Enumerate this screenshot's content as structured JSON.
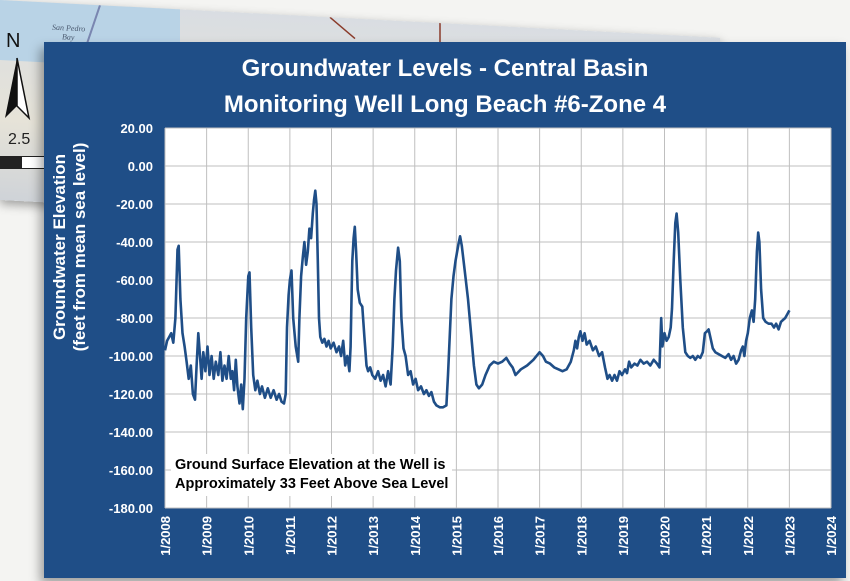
{
  "background_map": {
    "labels": [
      "San Pedro",
      "Bay"
    ],
    "north_label": "N",
    "scale_value": "2.5"
  },
  "colors": {
    "panel": "#1f4e87",
    "line": "#1f4e87",
    "plot_bg": "#ffffff",
    "grid": "#bfbfbf"
  },
  "chart_data": {
    "type": "line",
    "title": "Groundwater Levels - Central Basin",
    "subtitle": "Monitoring Well Long Beach #6-Zone 4",
    "ylabel_line1": "Groundwater Elevation",
    "ylabel_line2": "(feet from mean sea level)",
    "ylim": [
      -180,
      20
    ],
    "yticks": [
      "20.00",
      "0.00",
      "-20.00",
      "-40.00",
      "-60.00",
      "-80.00",
      "-100.00",
      "-120.00",
      "-140.00",
      "-160.00",
      "-180.00"
    ],
    "xlim": [
      2008,
      2024
    ],
    "xticks": [
      "1/2008",
      "1/2009",
      "1/2010",
      "1/2011",
      "1/2012",
      "1/2013",
      "1/2014",
      "1/2015",
      "1/2016",
      "1/2017",
      "1/2018",
      "1/2019",
      "1/2020",
      "1/2021",
      "1/2022",
      "1/2023",
      "1/2024"
    ],
    "grid": true,
    "annotation_line1": "Ground Surface Elevation at the Well is",
    "annotation_line2": "Approximately 33 Feet  Above Sea Level",
    "series": [
      {
        "points": [
          [
            2008.0,
            -97
          ],
          [
            2008.05,
            -92
          ],
          [
            2008.1,
            -90
          ],
          [
            2008.15,
            -88
          ],
          [
            2008.2,
            -93
          ],
          [
            2008.25,
            -80
          ],
          [
            2008.3,
            -44
          ],
          [
            2008.33,
            -42
          ],
          [
            2008.37,
            -70
          ],
          [
            2008.42,
            -88
          ],
          [
            2008.47,
            -95
          ],
          [
            2008.52,
            -103
          ],
          [
            2008.57,
            -112
          ],
          [
            2008.62,
            -105
          ],
          [
            2008.67,
            -120
          ],
          [
            2008.72,
            -123
          ],
          [
            2008.76,
            -105
          ],
          [
            2008.8,
            -88
          ],
          [
            2008.84,
            -100
          ],
          [
            2008.88,
            -112
          ],
          [
            2008.92,
            -98
          ],
          [
            2008.97,
            -108
          ],
          [
            2009.02,
            -95
          ],
          [
            2009.07,
            -110
          ],
          [
            2009.12,
            -100
          ],
          [
            2009.17,
            -112
          ],
          [
            2009.22,
            -103
          ],
          [
            2009.28,
            -110
          ],
          [
            2009.33,
            -98
          ],
          [
            2009.38,
            -113
          ],
          [
            2009.43,
            -105
          ],
          [
            2009.48,
            -112
          ],
          [
            2009.53,
            -100
          ],
          [
            2009.58,
            -112
          ],
          [
            2009.62,
            -108
          ],
          [
            2009.66,
            -118
          ],
          [
            2009.7,
            -102
          ],
          [
            2009.74,
            -116
          ],
          [
            2009.79,
            -125
          ],
          [
            2009.83,
            -115
          ],
          [
            2009.87,
            -128
          ],
          [
            2009.91,
            -112
          ],
          [
            2009.95,
            -80
          ],
          [
            2010.0,
            -58
          ],
          [
            2010.03,
            -56
          ],
          [
            2010.07,
            -85
          ],
          [
            2010.12,
            -110
          ],
          [
            2010.17,
            -118
          ],
          [
            2010.22,
            -113
          ],
          [
            2010.28,
            -120
          ],
          [
            2010.33,
            -116
          ],
          [
            2010.4,
            -122
          ],
          [
            2010.47,
            -117
          ],
          [
            2010.54,
            -122
          ],
          [
            2010.61,
            -118
          ],
          [
            2010.68,
            -123
          ],
          [
            2010.74,
            -120
          ],
          [
            2010.8,
            -124
          ],
          [
            2010.86,
            -125
          ],
          [
            2010.9,
            -120
          ],
          [
            2010.93,
            -85
          ],
          [
            2010.97,
            -68
          ],
          [
            2011.0,
            -60
          ],
          [
            2011.04,
            -55
          ],
          [
            2011.08,
            -80
          ],
          [
            2011.14,
            -95
          ],
          [
            2011.2,
            -103
          ],
          [
            2011.23,
            -80
          ],
          [
            2011.27,
            -58
          ],
          [
            2011.31,
            -48
          ],
          [
            2011.35,
            -40
          ],
          [
            2011.39,
            -52
          ],
          [
            2011.43,
            -45
          ],
          [
            2011.47,
            -33
          ],
          [
            2011.51,
            -38
          ],
          [
            2011.55,
            -25
          ],
          [
            2011.58,
            -18
          ],
          [
            2011.61,
            -13
          ],
          [
            2011.64,
            -20
          ],
          [
            2011.67,
            -50
          ],
          [
            2011.7,
            -80
          ],
          [
            2011.73,
            -90
          ],
          [
            2011.78,
            -93
          ],
          [
            2011.83,
            -91
          ],
          [
            2011.88,
            -95
          ],
          [
            2011.93,
            -92
          ],
          [
            2011.98,
            -96
          ],
          [
            2012.05,
            -93
          ],
          [
            2012.12,
            -98
          ],
          [
            2012.18,
            -95
          ],
          [
            2012.23,
            -100
          ],
          [
            2012.28,
            -92
          ],
          [
            2012.33,
            -105
          ],
          [
            2012.38,
            -100
          ],
          [
            2012.43,
            -108
          ],
          [
            2012.46,
            -95
          ],
          [
            2012.48,
            -70
          ],
          [
            2012.5,
            -50
          ],
          [
            2012.53,
            -38
          ],
          [
            2012.56,
            -32
          ],
          [
            2012.59,
            -45
          ],
          [
            2012.63,
            -65
          ],
          [
            2012.68,
            -72
          ],
          [
            2012.74,
            -74
          ],
          [
            2012.79,
            -90
          ],
          [
            2012.84,
            -105
          ],
          [
            2012.88,
            -108
          ],
          [
            2012.93,
            -106
          ],
          [
            2012.98,
            -110
          ],
          [
            2013.05,
            -112
          ],
          [
            2013.12,
            -108
          ],
          [
            2013.18,
            -113
          ],
          [
            2013.24,
            -110
          ],
          [
            2013.3,
            -116
          ],
          [
            2013.36,
            -108
          ],
          [
            2013.42,
            -115
          ],
          [
            2013.47,
            -95
          ],
          [
            2013.51,
            -70
          ],
          [
            2013.55,
            -55
          ],
          [
            2013.6,
            -43
          ],
          [
            2013.64,
            -50
          ],
          [
            2013.68,
            -80
          ],
          [
            2013.73,
            -96
          ],
          [
            2013.78,
            -100
          ],
          [
            2013.84,
            -110
          ],
          [
            2013.9,
            -108
          ],
          [
            2013.96,
            -115
          ],
          [
            2014.02,
            -112
          ],
          [
            2014.08,
            -118
          ],
          [
            2014.15,
            -116
          ],
          [
            2014.22,
            -120
          ],
          [
            2014.28,
            -118
          ],
          [
            2014.34,
            -121
          ],
          [
            2014.4,
            -119
          ],
          [
            2014.46,
            -124
          ],
          [
            2014.52,
            -126
          ],
          [
            2014.6,
            -127
          ],
          [
            2014.68,
            -127
          ],
          [
            2014.76,
            -126
          ],
          [
            2014.8,
            -110
          ],
          [
            2014.84,
            -90
          ],
          [
            2014.88,
            -70
          ],
          [
            2014.93,
            -58
          ],
          [
            2014.98,
            -50
          ],
          [
            2015.05,
            -41
          ],
          [
            2015.09,
            -37
          ],
          [
            2015.13,
            -42
          ],
          [
            2015.2,
            -55
          ],
          [
            2015.28,
            -70
          ],
          [
            2015.36,
            -90
          ],
          [
            2015.42,
            -105
          ],
          [
            2015.48,
            -115
          ],
          [
            2015.54,
            -117
          ],
          [
            2015.62,
            -115
          ],
          [
            2015.7,
            -110
          ],
          [
            2015.8,
            -105
          ],
          [
            2015.9,
            -103
          ],
          [
            2016.0,
            -104
          ],
          [
            2016.1,
            -103
          ],
          [
            2016.2,
            -101
          ],
          [
            2016.28,
            -104
          ],
          [
            2016.35,
            -106
          ],
          [
            2016.42,
            -110
          ],
          [
            2016.55,
            -107
          ],
          [
            2016.7,
            -105
          ],
          [
            2016.85,
            -102
          ],
          [
            2017.0,
            -98
          ],
          [
            2017.08,
            -100
          ],
          [
            2017.15,
            -103
          ],
          [
            2017.25,
            -104
          ],
          [
            2017.35,
            -106
          ],
          [
            2017.45,
            -107
          ],
          [
            2017.55,
            -108
          ],
          [
            2017.65,
            -107
          ],
          [
            2017.75,
            -103
          ],
          [
            2017.82,
            -97
          ],
          [
            2017.86,
            -92
          ],
          [
            2017.9,
            -96
          ],
          [
            2017.94,
            -90
          ],
          [
            2017.98,
            -87
          ],
          [
            2018.03,
            -92
          ],
          [
            2018.08,
            -88
          ],
          [
            2018.13,
            -94
          ],
          [
            2018.2,
            -92
          ],
          [
            2018.28,
            -97
          ],
          [
            2018.35,
            -95
          ],
          [
            2018.43,
            -100
          ],
          [
            2018.5,
            -98
          ],
          [
            2018.57,
            -106
          ],
          [
            2018.63,
            -112
          ],
          [
            2018.68,
            -110
          ],
          [
            2018.74,
            -113
          ],
          [
            2018.8,
            -110
          ],
          [
            2018.86,
            -113
          ],
          [
            2018.92,
            -108
          ],
          [
            2018.98,
            -110
          ],
          [
            2019.05,
            -107
          ],
          [
            2019.1,
            -109
          ],
          [
            2019.15,
            -103
          ],
          [
            2019.2,
            -106
          ],
          [
            2019.28,
            -104
          ],
          [
            2019.35,
            -105
          ],
          [
            2019.42,
            -102
          ],
          [
            2019.5,
            -104
          ],
          [
            2019.58,
            -103
          ],
          [
            2019.66,
            -105
          ],
          [
            2019.74,
            -102
          ],
          [
            2019.82,
            -104
          ],
          [
            2019.88,
            -106
          ],
          [
            2019.92,
            -80
          ],
          [
            2019.95,
            -95
          ],
          [
            2020.0,
            -88
          ],
          [
            2020.05,
            -92
          ],
          [
            2020.1,
            -90
          ],
          [
            2020.15,
            -85
          ],
          [
            2020.18,
            -75
          ],
          [
            2020.22,
            -50
          ],
          [
            2020.26,
            -30
          ],
          [
            2020.29,
            -25
          ],
          [
            2020.33,
            -35
          ],
          [
            2020.38,
            -60
          ],
          [
            2020.44,
            -85
          ],
          [
            2020.5,
            -98
          ],
          [
            2020.56,
            -100
          ],
          [
            2020.62,
            -101
          ],
          [
            2020.68,
            -100
          ],
          [
            2020.74,
            -102
          ],
          [
            2020.8,
            -100
          ],
          [
            2020.86,
            -101
          ],
          [
            2020.92,
            -98
          ],
          [
            2020.97,
            -88
          ],
          [
            2021.02,
            -87
          ],
          [
            2021.06,
            -86
          ],
          [
            2021.1,
            -90
          ],
          [
            2021.16,
            -96
          ],
          [
            2021.22,
            -98
          ],
          [
            2021.3,
            -99
          ],
          [
            2021.38,
            -100
          ],
          [
            2021.46,
            -101
          ],
          [
            2021.54,
            -99
          ],
          [
            2021.6,
            -102
          ],
          [
            2021.66,
            -100
          ],
          [
            2021.72,
            -104
          ],
          [
            2021.78,
            -102
          ],
          [
            2021.84,
            -97
          ],
          [
            2021.88,
            -95
          ],
          [
            2021.92,
            -100
          ],
          [
            2021.96,
            -92
          ],
          [
            2022.0,
            -88
          ],
          [
            2022.05,
            -80
          ],
          [
            2022.1,
            -76
          ],
          [
            2022.14,
            -82
          ],
          [
            2022.18,
            -70
          ],
          [
            2022.22,
            -45
          ],
          [
            2022.25,
            -35
          ],
          [
            2022.28,
            -40
          ],
          [
            2022.32,
            -65
          ],
          [
            2022.37,
            -80
          ],
          [
            2022.43,
            -82
          ],
          [
            2022.5,
            -83
          ],
          [
            2022.57,
            -83
          ],
          [
            2022.63,
            -85
          ],
          [
            2022.68,
            -83
          ],
          [
            2022.74,
            -86
          ],
          [
            2022.8,
            -82
          ],
          [
            2022.85,
            -81
          ],
          [
            2022.9,
            -80
          ],
          [
            2022.95,
            -78
          ],
          [
            2023.0,
            -76
          ]
        ]
      }
    ]
  }
}
